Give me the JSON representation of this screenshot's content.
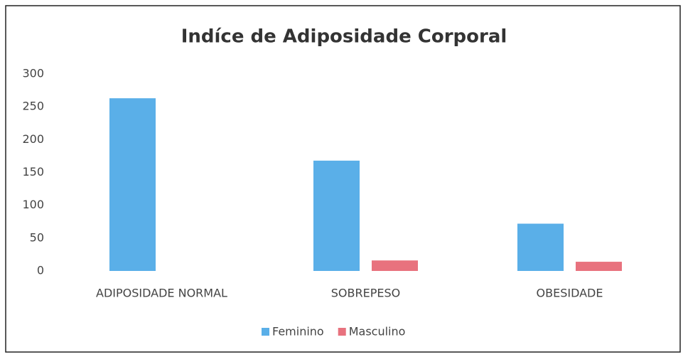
{
  "chart_data": {
    "type": "bar",
    "title": "Indíce de Adiposidade Corporal",
    "categories": [
      "ADIPOSIDADE NORMAL",
      "SOBREPESO",
      "OBESIDADE"
    ],
    "series": [
      {
        "name": "Feminino",
        "color": "#5aafe8",
        "values": [
          263,
          168,
          72
        ]
      },
      {
        "name": "Masculino",
        "color": "#e8727e",
        "values": [
          0,
          16,
          14
        ]
      }
    ],
    "ylim": [
      0,
      300
    ],
    "yticks": [
      0,
      50,
      100,
      150,
      200,
      250,
      300
    ],
    "grid": false,
    "legend": "bottom"
  }
}
